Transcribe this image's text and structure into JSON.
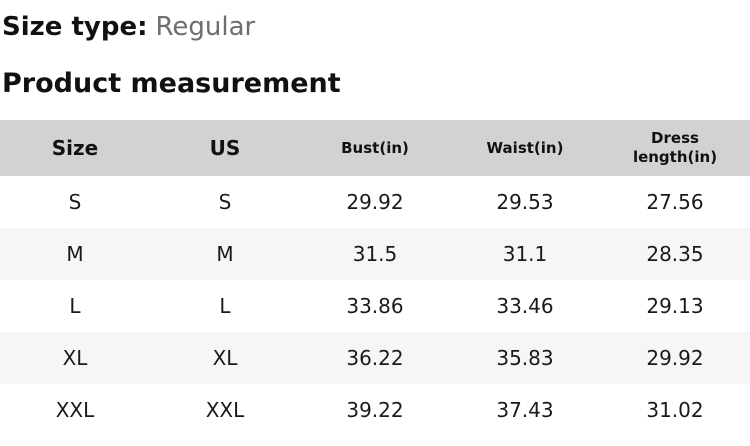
{
  "size_type": {
    "label": "Size type:",
    "value": "Regular"
  },
  "section_title": "Product measurement",
  "table": {
    "columns": [
      "Size",
      "US",
      "Bust(in)",
      "Waist(in)",
      "Dress length(in)"
    ],
    "rows": [
      [
        "S",
        "S",
        "29.92",
        "29.53",
        "27.56"
      ],
      [
        "M",
        "M",
        "31.5",
        "31.1",
        "28.35"
      ],
      [
        "L",
        "L",
        "33.86",
        "33.46",
        "29.13"
      ],
      [
        "XL",
        "XL",
        "36.22",
        "35.83",
        "29.92"
      ],
      [
        "XXL",
        "XXL",
        "39.22",
        "37.43",
        "31.02"
      ]
    ]
  },
  "colors": {
    "header_bg": "#d2d2d2",
    "alt_row_bg": "#f6f6f6",
    "heading_text": "#111111",
    "muted_text": "#6e6e6e"
  }
}
